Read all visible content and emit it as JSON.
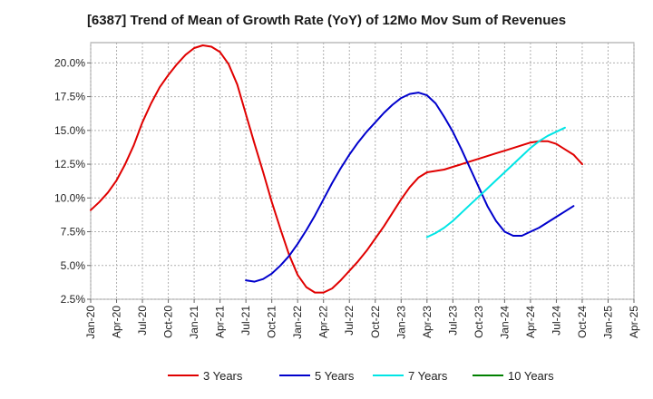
{
  "chart_data": {
    "type": "line",
    "title": "[6387]  Trend of Mean of Growth Rate (YoY) of 12Mo Mov Sum of Revenues",
    "xlabel": "",
    "ylabel": "",
    "ylim": [
      2.5,
      21.5
    ],
    "y_ticks": [
      2.5,
      5.0,
      7.5,
      10.0,
      12.5,
      15.0,
      17.5,
      20.0
    ],
    "y_tick_labels": [
      "2.5%",
      "5.0%",
      "7.5%",
      "10.0%",
      "12.5%",
      "15.0%",
      "17.5%",
      "20.0%"
    ],
    "x_ticks": [
      "Jan-20",
      "Apr-20",
      "Jul-20",
      "Oct-20",
      "Jan-21",
      "Apr-21",
      "Jul-21",
      "Oct-21",
      "Jan-22",
      "Apr-22",
      "Jul-22",
      "Oct-22",
      "Jan-23",
      "Apr-23",
      "Jul-23",
      "Oct-23",
      "Jan-24",
      "Apr-24",
      "Jul-24",
      "Oct-24",
      "Jan-25",
      "Apr-25"
    ],
    "grid": true,
    "legend_position": "bottom",
    "series": [
      {
        "name": "3 Years",
        "color": "#e00000",
        "start_index": 0,
        "values": [
          9.1,
          9.7,
          10.4,
          11.3,
          12.5,
          13.9,
          15.6,
          17.0,
          18.2,
          19.1,
          19.9,
          20.6,
          21.1,
          21.3,
          21.2,
          20.8,
          19.9,
          18.4,
          16.2,
          14.0,
          11.9,
          9.7,
          7.7,
          5.8,
          4.3,
          3.4,
          3.0,
          3.0,
          3.3,
          3.9,
          4.6,
          5.3,
          6.1,
          7.0,
          7.9,
          8.9,
          9.9,
          10.8,
          11.5,
          11.9,
          12.0,
          12.1,
          12.3,
          12.5,
          12.7,
          12.9,
          13.1,
          13.3,
          13.5,
          13.7,
          13.9,
          14.1,
          14.2,
          14.2,
          14.0,
          13.6,
          13.2,
          12.5
        ]
      },
      {
        "name": "5 Years",
        "color": "#0000cc",
        "start_index": 18,
        "values": [
          3.9,
          3.8,
          4.0,
          4.4,
          5.0,
          5.7,
          6.6,
          7.6,
          8.7,
          9.9,
          11.1,
          12.2,
          13.2,
          14.1,
          14.9,
          15.6,
          16.3,
          16.9,
          17.4,
          17.7,
          17.8,
          17.6,
          17.0,
          16.0,
          14.9,
          13.6,
          12.2,
          10.8,
          9.4,
          8.3,
          7.5,
          7.2,
          7.2,
          7.5,
          7.8,
          8.2,
          8.6,
          9.0,
          9.4
        ]
      },
      {
        "name": "7 Years",
        "color": "#00e5e5",
        "start_index": 39,
        "values": [
          7.1,
          7.4,
          7.8,
          8.3,
          8.9,
          9.5,
          10.1,
          10.7,
          11.3,
          11.9,
          12.5,
          13.1,
          13.7,
          14.2,
          14.6,
          14.9,
          15.2
        ]
      },
      {
        "name": "10 Years",
        "color": "#008000",
        "start_index": 0,
        "values": []
      }
    ]
  }
}
